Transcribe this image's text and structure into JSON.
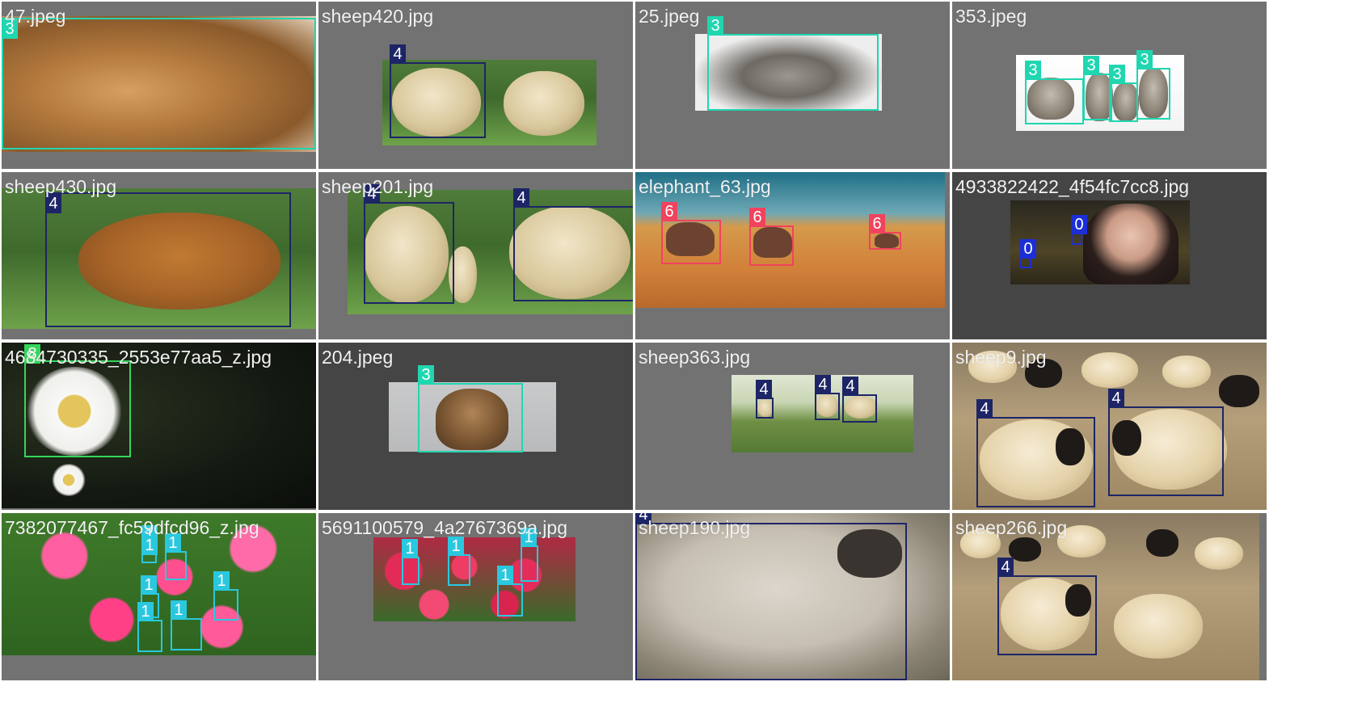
{
  "grid": {
    "cells": [
      {
        "filename": "47.jpeg",
        "labels": [
          "3"
        ]
      },
      {
        "filename": "sheep420.jpg",
        "labels": [
          "4"
        ]
      },
      {
        "filename": "25.jpeg",
        "labels": [
          "3"
        ]
      },
      {
        "filename": "353.jpeg",
        "labels": [
          "3",
          "3",
          "3",
          "3"
        ]
      },
      {
        "filename": "sheep430.jpg",
        "labels": [
          "4"
        ]
      },
      {
        "filename": "sheep201.jpg",
        "labels": [
          "4",
          "4"
        ]
      },
      {
        "filename": "elephant_63.jpg",
        "labels": [
          "6",
          "6",
          "6"
        ]
      },
      {
        "filename": "4933822422_4f54fc7cc8.jpg",
        "labels": [
          "0",
          "0"
        ]
      },
      {
        "filename": "4684730335_2553e77aa5_z.jpg",
        "labels": [
          "8"
        ]
      },
      {
        "filename": "204.jpeg",
        "labels": [
          "3"
        ]
      },
      {
        "filename": "sheep363.jpg",
        "labels": [
          "4",
          "4",
          "4"
        ]
      },
      {
        "filename": "sheep9.jpg",
        "labels": [
          "4",
          "4"
        ]
      },
      {
        "filename": "7382077467_fc59dfcd96_z.jpg",
        "labels": [
          "1",
          "1",
          "1",
          "1",
          "1",
          "1",
          "1"
        ]
      },
      {
        "filename": "5691100579_4a2767369a.jpg",
        "labels": [
          "1",
          "1",
          "1",
          "1"
        ]
      },
      {
        "filename": "sheep190.jpg",
        "labels": [
          "4"
        ]
      },
      {
        "filename": "sheep266.jpg",
        "labels": [
          "4"
        ]
      }
    ]
  },
  "class_colors": {
    "0": "#1c2ed8",
    "1": "#2ac8df",
    "3": "#20d6b0",
    "4": "#1d2566",
    "6": "#f0435e",
    "8": "#34d65a"
  }
}
